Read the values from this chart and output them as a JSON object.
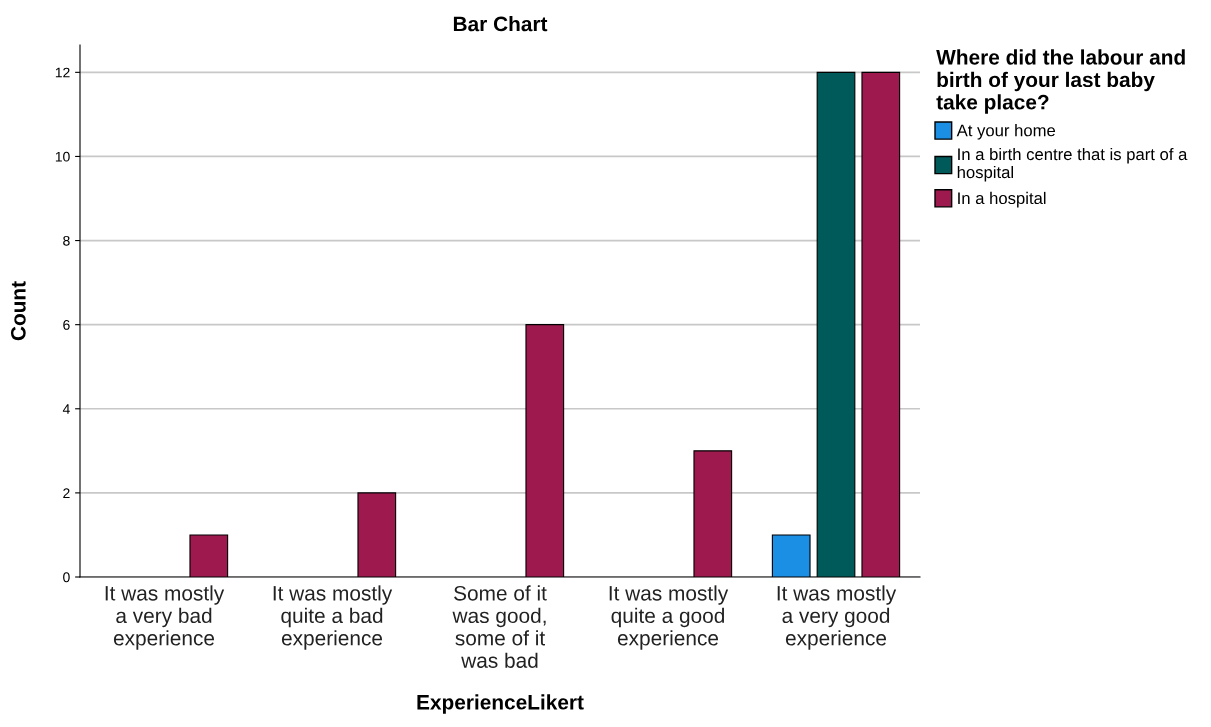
{
  "chart_data": {
    "type": "bar",
    "title": "Bar Chart",
    "xlabel": "ExperienceLikert",
    "ylabel": "Count",
    "categories": [
      "It was mostly\na very bad\nexperience",
      "It was mostly\nquite a bad\nexperience",
      "Some of it\nwas good,\nsome of it\nwas bad",
      "It was mostly\nquite a good\nexperience",
      "It was mostly\na very good\nexperience"
    ],
    "legend_title": "Where did the labour and\nbirth of your last baby\ntake place?",
    "series": [
      {
        "name": "At your home",
        "color": "#1b8fe3",
        "values": [
          null,
          null,
          null,
          null,
          1
        ]
      },
      {
        "name": "In a birth centre that is part of a\nhospital",
        "color": "#005a5a",
        "values": [
          null,
          null,
          null,
          null,
          12
        ]
      },
      {
        "name": "In a hospital",
        "color": "#9e1a4e",
        "values": [
          1,
          2,
          6,
          3,
          12
        ]
      }
    ],
    "ylim": [
      0,
      12.65
    ],
    "yticks": [
      0,
      2,
      4,
      6,
      8,
      10,
      12
    ],
    "grid": "y",
    "legend": "top right"
  }
}
